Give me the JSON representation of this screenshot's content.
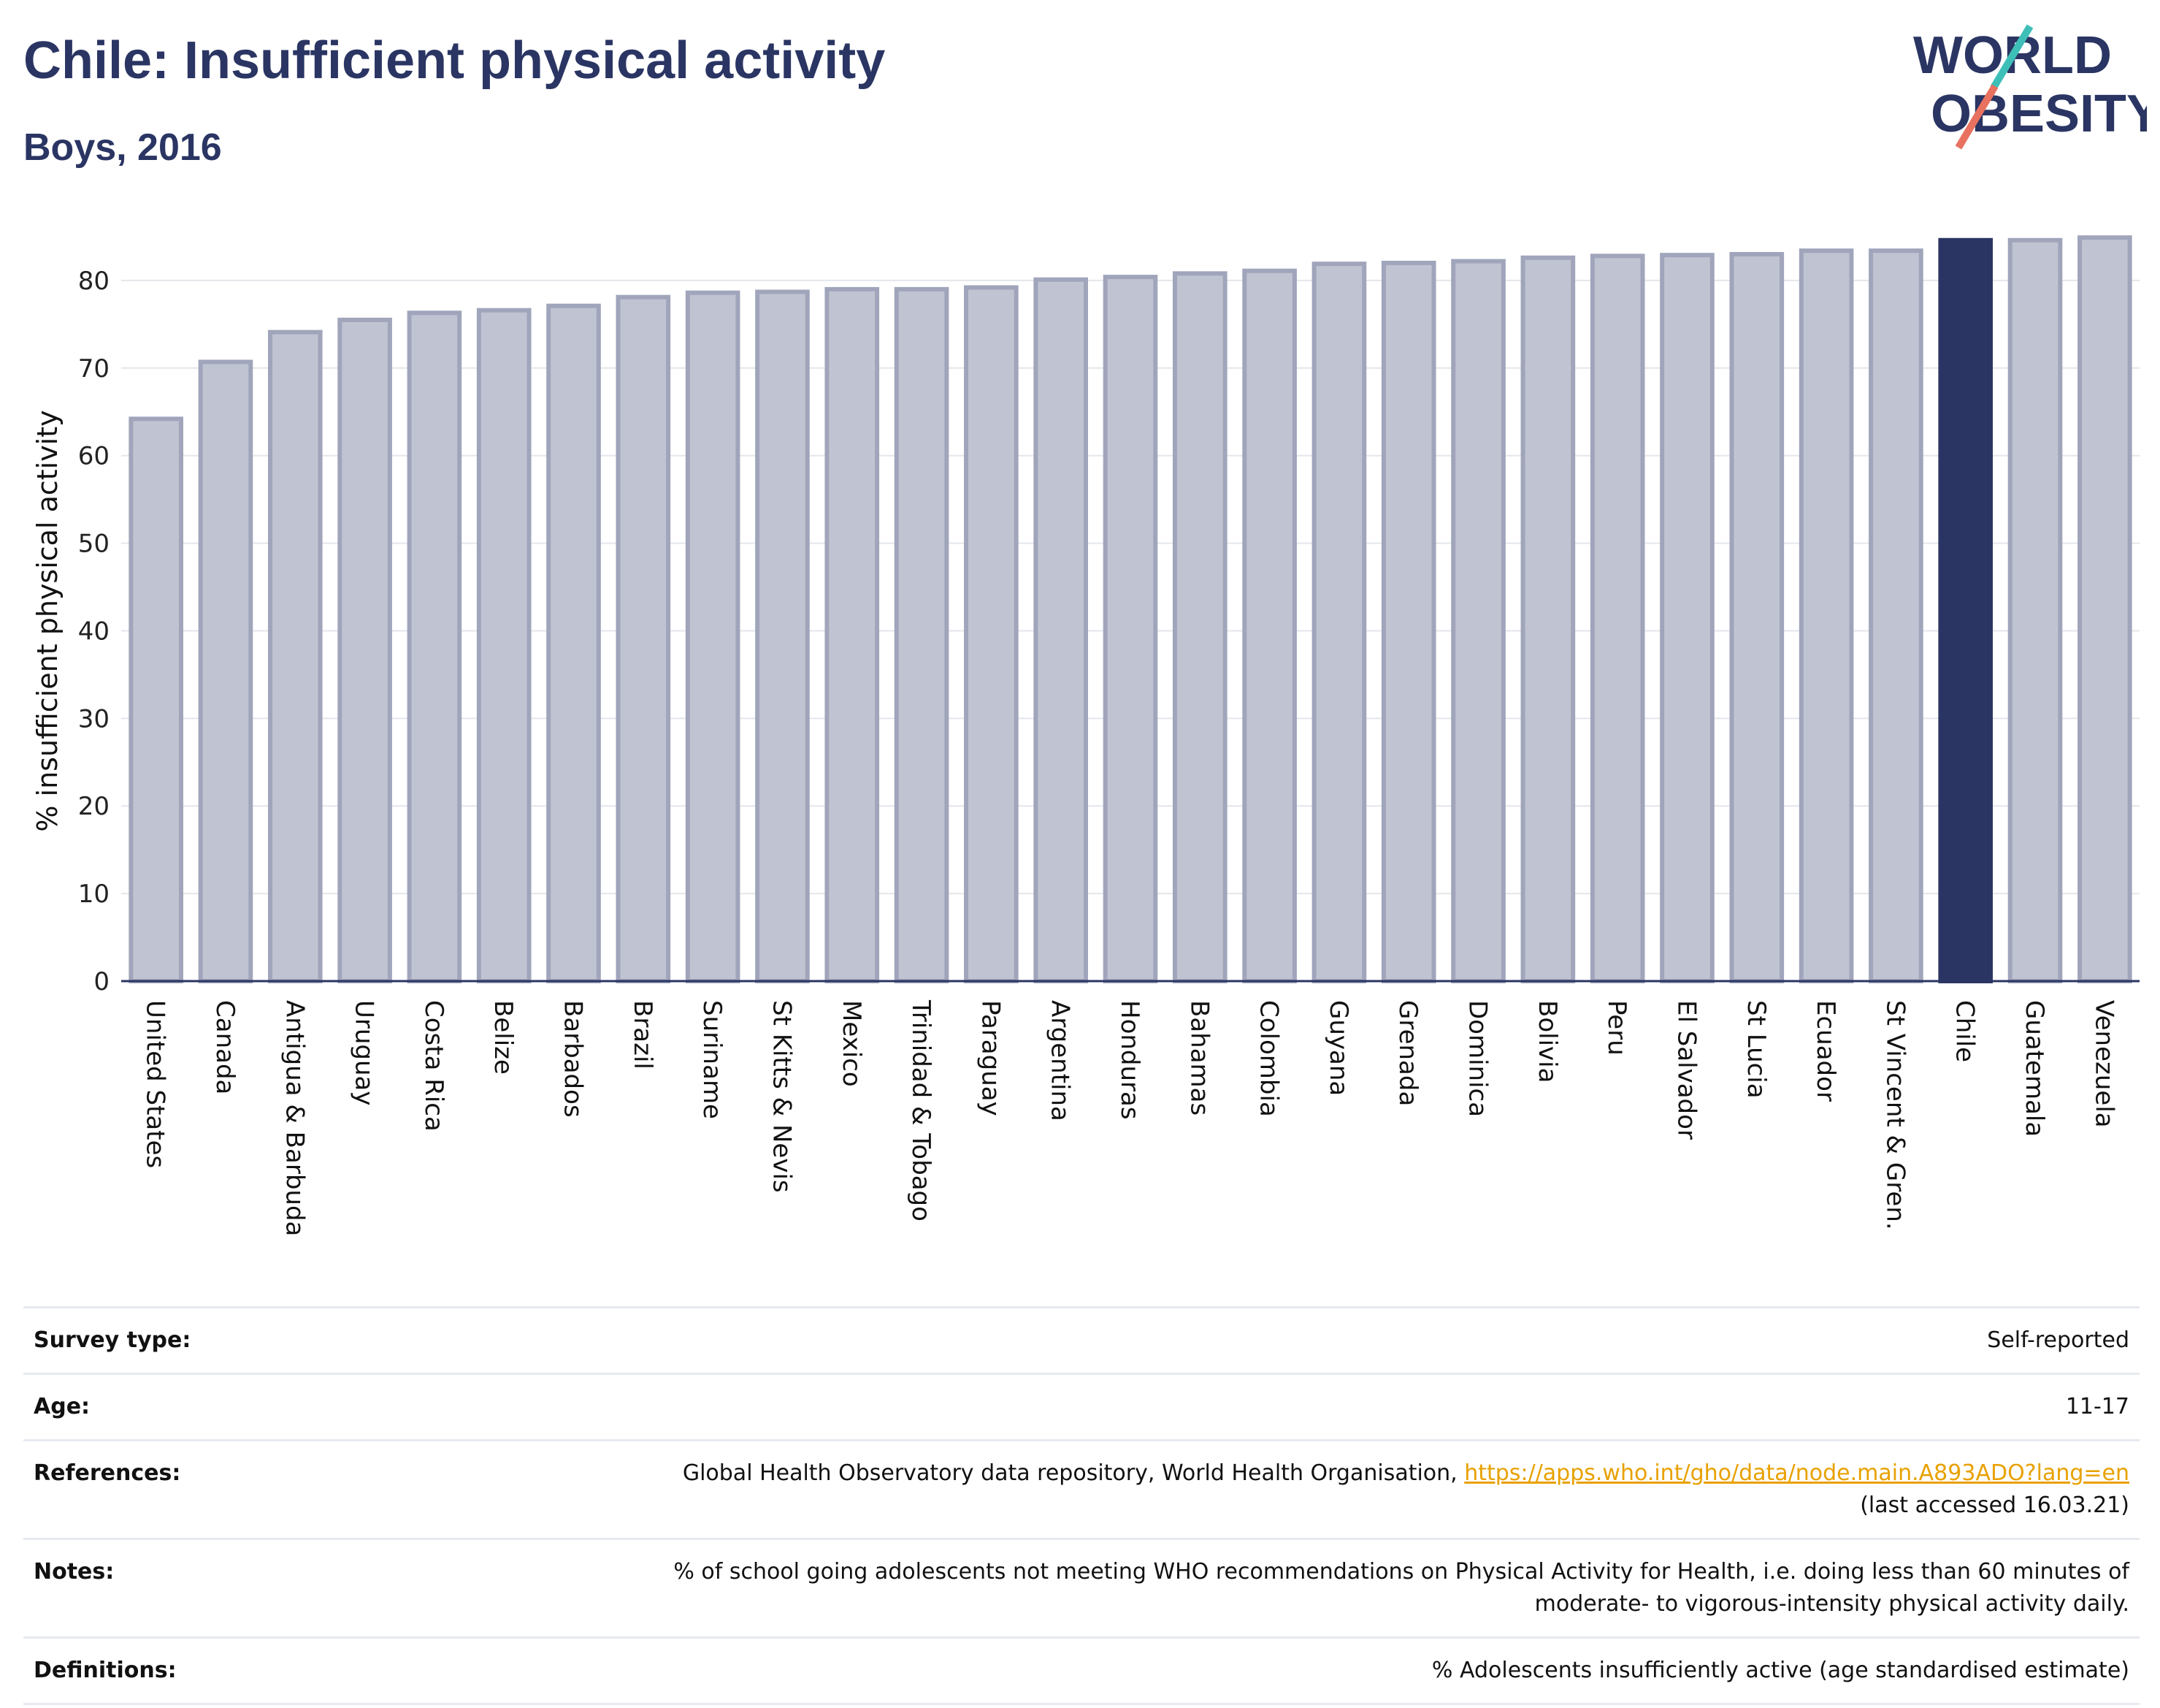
{
  "header": {
    "title": "Chile: Insufficient physical activity",
    "subtitle": "Boys, 2016"
  },
  "logo": {
    "line1": "WORLD",
    "line2": "OBESITY",
    "accent_colors": [
      "#3dbfb8",
      "#e8715f"
    ]
  },
  "chart_data": {
    "type": "bar",
    "ylabel": "% insufficient physical activity",
    "ylim": [
      0,
      87
    ],
    "yticks": [
      0,
      10,
      20,
      30,
      40,
      50,
      60,
      70,
      80
    ],
    "grid": true,
    "highlight": "Chile",
    "colors": {
      "bar": "#c0c3d1",
      "bar_edge": "#a0a5bb",
      "highlight": "#2a3563"
    },
    "categories": [
      "United States",
      "Canada",
      "Antigua & Barbuda",
      "Uruguay",
      "Costa Rica",
      "Belize",
      "Barbados",
      "Brazil",
      "Suriname",
      "St Kitts & Nevis",
      "Mexico",
      "Trinidad & Tobago",
      "Paraguay",
      "Argentina",
      "Honduras",
      "Bahamas",
      "Colombia",
      "Guyana",
      "Grenada",
      "Dominica",
      "Bolivia",
      "Peru",
      "El Salvador",
      "St Lucia",
      "Ecuador",
      "St Vincent & Gren.",
      "Chile",
      "Guatemala",
      "Venezuela"
    ],
    "values": [
      64.2,
      70.7,
      74.1,
      75.5,
      76.3,
      76.6,
      77.1,
      78.1,
      78.6,
      78.7,
      79.0,
      79.0,
      79.2,
      80.1,
      80.4,
      80.8,
      81.1,
      81.9,
      82.0,
      82.2,
      82.6,
      82.8,
      82.9,
      83.0,
      83.4,
      83.4,
      84.6,
      84.6,
      84.9
    ]
  },
  "info": {
    "survey_label": "Survey type:",
    "survey_value": "Self-reported",
    "age_label": "Age:",
    "age_value": "11-17",
    "references_label": "References:",
    "references_text": "Global Health Observatory data repository, World Health Organisation,",
    "references_link": "https://apps.who.int/gho/data/node.main.A893ADO?lang=en",
    "references_accessed": "(last accessed 16.03.21)",
    "notes_label": "Notes:",
    "notes_line1": "% of school going adolescents not meeting WHO recommendations on Physical Activity for Health, i.e. doing less than 60 minutes of",
    "notes_line2": "moderate- to vigorous-intensity physical activity daily.",
    "definitions_label": "Definitions:",
    "definitions_value": "% Adolescents insufficiently active (age standardised estimate)"
  }
}
